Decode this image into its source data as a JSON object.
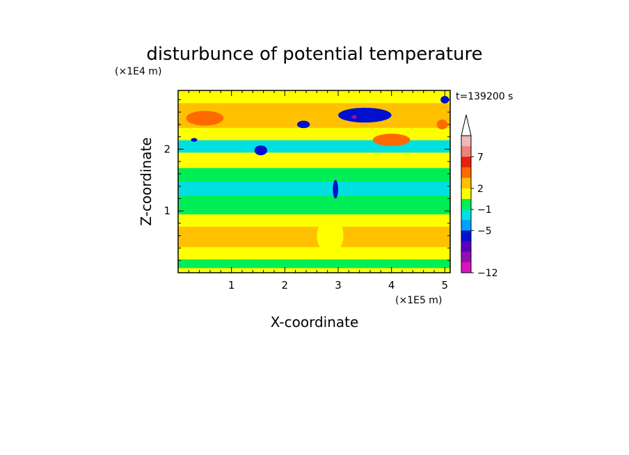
{
  "chart_data": {
    "type": "heatmap",
    "title": "disturbunce of potential temperature",
    "time_label": "t=139200 s",
    "xlabel": "X-coordinate",
    "ylabel": "Z-coordinate",
    "x_scale_label": "(×1E5 m)",
    "y_scale_label": "(×1E4 m)",
    "xlim": [
      0,
      5.1
    ],
    "ylim": [
      0,
      2.95
    ],
    "x_ticks": [
      "1",
      "2",
      "3",
      "4",
      "5"
    ],
    "y_ticks": [
      "1",
      "2"
    ],
    "colorbar": {
      "labels": [
        "7",
        "2",
        "−1",
        "−5",
        "−12"
      ],
      "colors": [
        "#f0b8b8",
        "#f08080",
        "#e82010",
        "#ff6a00",
        "#ffc000",
        "#ffff00",
        "#00ee55",
        "#00e0e0",
        "#00a0ff",
        "#0010d0",
        "#5a00c0",
        "#9010b0",
        "#e010c0"
      ]
    },
    "bands": [
      {
        "z": [
          0.0,
          0.08
        ],
        "color": "#ffff00"
      },
      {
        "z": [
          0.08,
          0.22
        ],
        "color": "#00ee55"
      },
      {
        "z": [
          0.22,
          0.42
        ],
        "color": "#ffff00"
      },
      {
        "z": [
          0.42,
          0.75
        ],
        "color": "#ffc000"
      },
      {
        "z": [
          0.75,
          0.95
        ],
        "color": "#ffff00"
      },
      {
        "z": [
          0.95,
          1.25
        ],
        "color": "#00ee55"
      },
      {
        "z": [
          1.25,
          1.48
        ],
        "color": "#00e0e0"
      },
      {
        "z": [
          1.48,
          1.7
        ],
        "color": "#00ee55"
      },
      {
        "z": [
          1.7,
          1.95
        ],
        "color": "#ffff00"
      },
      {
        "z": [
          1.95,
          2.15
        ],
        "color": "#00e0e0"
      },
      {
        "z": [
          2.15,
          2.35
        ],
        "color": "#ffff00"
      },
      {
        "z": [
          2.35,
          2.75
        ],
        "color": "#ffc000"
      },
      {
        "z": [
          2.75,
          2.95
        ],
        "color": "#ffff00"
      }
    ],
    "blobs": [
      {
        "x": 0.5,
        "z": 2.5,
        "rx": 0.35,
        "rz": 0.12,
        "color": "#ff6a00"
      },
      {
        "x": 0.3,
        "z": 2.15,
        "rx": 0.06,
        "rz": 0.03,
        "color": "#0010d0"
      },
      {
        "x": 1.55,
        "z": 1.98,
        "rx": 0.12,
        "rz": 0.08,
        "color": "#0010d0"
      },
      {
        "x": 2.35,
        "z": 2.4,
        "rx": 0.12,
        "rz": 0.06,
        "color": "#0010d0"
      },
      {
        "x": 3.5,
        "z": 2.55,
        "rx": 0.5,
        "rz": 0.12,
        "color": "#0010d0"
      },
      {
        "x": 3.3,
        "z": 2.52,
        "rx": 0.05,
        "rz": 0.03,
        "color": "#9010b0"
      },
      {
        "x": 4.0,
        "z": 2.15,
        "rx": 0.35,
        "rz": 0.1,
        "color": "#ff6a00"
      },
      {
        "x": 5.0,
        "z": 2.8,
        "rx": 0.08,
        "rz": 0.06,
        "color": "#0010d0"
      },
      {
        "x": 4.95,
        "z": 2.4,
        "rx": 0.1,
        "rz": 0.08,
        "color": "#ff6a00"
      },
      {
        "x": 2.95,
        "z": 1.35,
        "rx": 0.05,
        "rz": 0.15,
        "color": "#0010d0"
      },
      {
        "x": 2.85,
        "z": 0.6,
        "rx": 0.25,
        "rz": 0.3,
        "color": "#ffff00"
      }
    ]
  }
}
